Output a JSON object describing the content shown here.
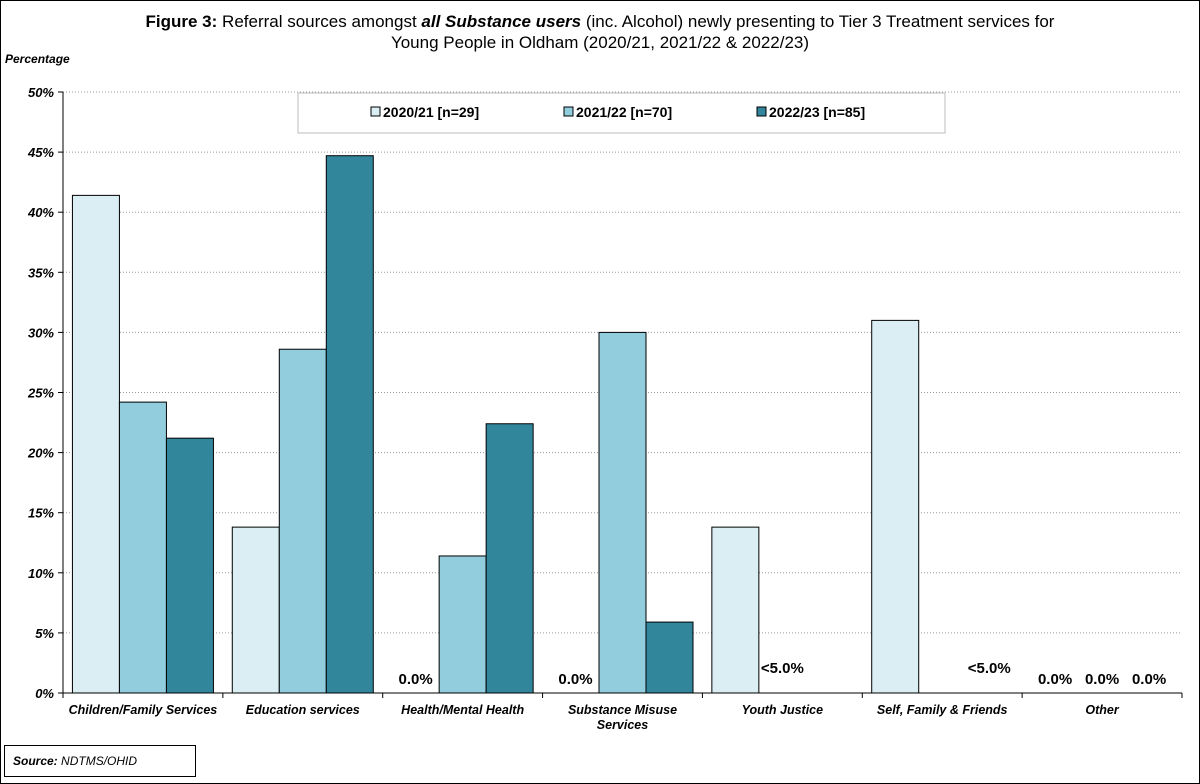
{
  "title": {
    "prefix": "Figure 3:",
    "part1": " Referral sources amongst ",
    "emph": "all Substance users",
    "part2": " (inc. Alcohol) newly presenting to Tier 3 Treatment services for",
    "line2": "Young People in Oldham (2020/21, 2021/22 & 2022/23)"
  },
  "source": {
    "label": "Source:",
    "value": "NDTMS/OHID"
  },
  "chart_data": {
    "type": "bar",
    "ylabel": "Percentage",
    "ylim": [
      0,
      50
    ],
    "yticks": [
      "0%",
      "5%",
      "10%",
      "15%",
      "20%",
      "25%",
      "30%",
      "35%",
      "40%",
      "45%",
      "50%"
    ],
    "grid": true,
    "legend_position": "top",
    "categories": [
      [
        "Children/Family Services"
      ],
      [
        "Education services"
      ],
      [
        "Health/Mental Health"
      ],
      [
        "Substance Misuse",
        "Services"
      ],
      [
        "Youth Justice"
      ],
      [
        "Self, Family & Friends"
      ],
      [
        "Other"
      ]
    ],
    "series": [
      {
        "name": "2020/21 [n=29]",
        "color": "#daeef4",
        "values": [
          41.4,
          13.8,
          0.0,
          0.0,
          13.8,
          31.0,
          0.0
        ],
        "labels": [
          null,
          null,
          "0.0%",
          "0.0%",
          null,
          null,
          "0.0%"
        ]
      },
      {
        "name": "2021/22 [n=70]",
        "color": "#92cddd",
        "values": [
          24.2,
          28.6,
          11.4,
          30.0,
          null,
          null,
          0.0
        ],
        "labels": [
          null,
          null,
          null,
          null,
          "<5.0%",
          null,
          "0.0%"
        ]
      },
      {
        "name": "2022/23 [n=85]",
        "color": "#31869b",
        "values": [
          21.2,
          44.7,
          22.4,
          5.9,
          null,
          null,
          0.0
        ],
        "labels": [
          null,
          null,
          null,
          null,
          null,
          "<5.0%",
          "0.0%"
        ]
      }
    ]
  }
}
